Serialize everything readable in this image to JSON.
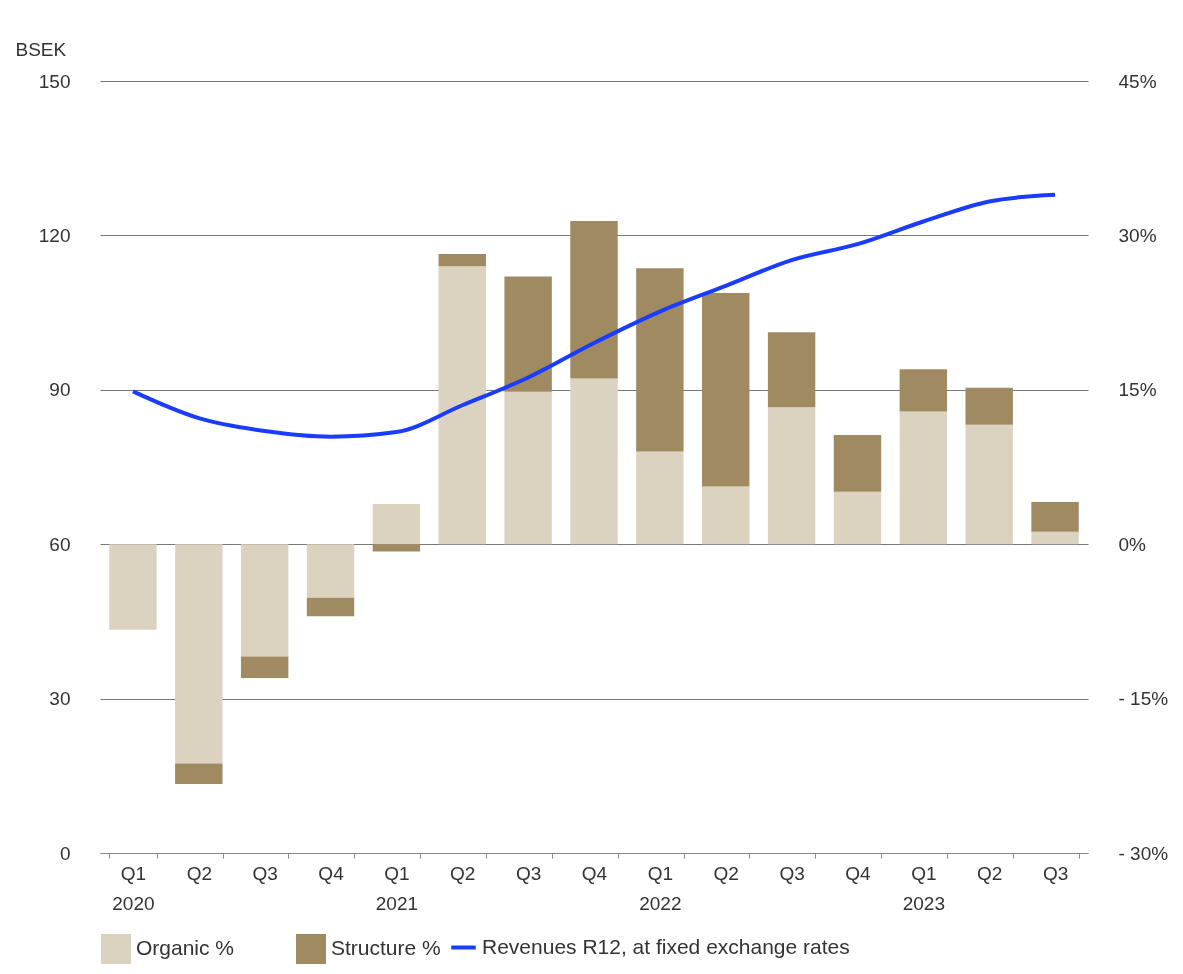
{
  "chart_data": {
    "type": "bar",
    "stacked": true,
    "ylabel": "BSEK",
    "categories": [
      "Q1 2020",
      "Q2",
      "Q3",
      "Q4",
      "Q1 2021",
      "Q2",
      "Q3",
      "Q4",
      "Q1 2022",
      "Q2",
      "Q3",
      "Q4",
      "Q1 2023",
      "Q2",
      "Q3"
    ],
    "series": [
      {
        "name": "Revenues R12, at fixed exchange rates",
        "type": "line",
        "color": "#1a3cff",
        "values": [
          89.7,
          84.5,
          82.0,
          80.9,
          81.8,
          87.0,
          92.4,
          99.1,
          105.2,
          110.2,
          115.2,
          118.3,
          122.7,
          126.6,
          127.9
        ]
      },
      {
        "name": "Organic %",
        "axis": "y2",
        "color": "#dbd3c0",
        "values": [
          -8.3,
          -21.3,
          -10.9,
          -5.2,
          3.9,
          27.0,
          14.8,
          16.1,
          9.0,
          5.6,
          13.3,
          5.1,
          12.9,
          11.6,
          1.2
        ]
      },
      {
        "name": "Structure %",
        "axis": "y2",
        "color": "#a08a62",
        "values": [
          0,
          -2.0,
          -2.1,
          -1.8,
          -0.7,
          1.2,
          11.2,
          15.3,
          17.8,
          18.8,
          7.3,
          5.5,
          4.1,
          3.6,
          2.9
        ]
      }
    ],
    "ylim": [
      0,
      150
    ],
    "yticks": [
      0,
      30,
      60,
      90,
      120,
      150
    ],
    "y2lim": [
      -30,
      45
    ],
    "y2ticks": [
      {
        "value": 45,
        "label": "45%"
      },
      {
        "value": 30,
        "label": "30%"
      },
      {
        "value": 15,
        "label": "15%"
      },
      {
        "value": 0,
        "label": "0%"
      },
      {
        "value": -15,
        "label": "- 15%"
      },
      {
        "value": -30,
        "label": "- 30%"
      }
    ],
    "grid": "y",
    "legend": "bottom"
  }
}
